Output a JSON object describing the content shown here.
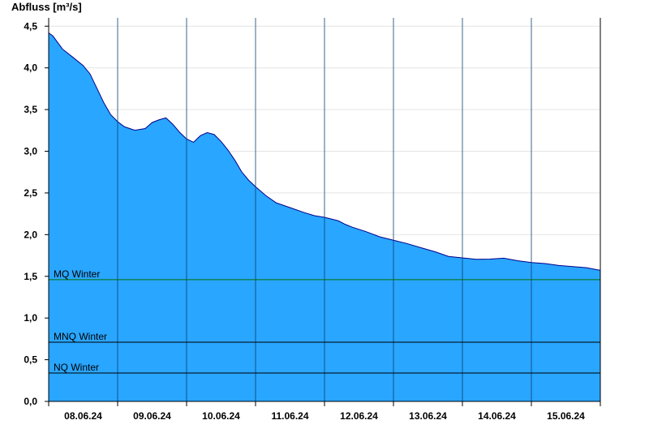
{
  "chart_data": {
    "type": "area",
    "ylabel": "Abfluss [m³/s]",
    "ylim": [
      0,
      4.6
    ],
    "yticks": [
      0,
      0.5,
      1.0,
      1.5,
      2.0,
      2.5,
      3.0,
      3.5,
      4.0,
      4.5
    ],
    "ytick_labels": [
      "0,0",
      "0,5",
      "1,0",
      "1,5",
      "2,0",
      "2,5",
      "3,0",
      "3,5",
      "4,0",
      "4,5"
    ],
    "xlim": [
      0,
      8
    ],
    "day_labels": [
      "08.06.24",
      "09.06.24",
      "10.06.24",
      "11.06.24",
      "12.06.24",
      "13.06.24",
      "14.06.24",
      "15.06.24"
    ],
    "grid": true,
    "series": [
      {
        "color": "#29a6ff",
        "line_color": "#00008b",
        "x": [
          0,
          0.06,
          0.2,
          0.35,
          0.5,
          0.6,
          0.7,
          0.8,
          0.9,
          1.0,
          1.1,
          1.25,
          1.4,
          1.5,
          1.6,
          1.7,
          1.8,
          1.9,
          2.0,
          2.1,
          2.2,
          2.3,
          2.4,
          2.5,
          2.6,
          2.7,
          2.8,
          2.9,
          3.0,
          3.15,
          3.3,
          3.5,
          3.7,
          3.85,
          4.0,
          4.2,
          4.3,
          4.4,
          4.6,
          4.8,
          5.0,
          5.2,
          5.4,
          5.6,
          5.8,
          6.0,
          6.2,
          6.4,
          6.6,
          6.8,
          7.0,
          7.2,
          7.4,
          7.6,
          7.8,
          8.0
        ],
        "y": [
          4.42,
          4.38,
          4.22,
          4.12,
          4.02,
          3.92,
          3.75,
          3.58,
          3.44,
          3.36,
          3.3,
          3.26,
          3.28,
          3.35,
          3.38,
          3.4,
          3.32,
          3.22,
          3.14,
          3.1,
          3.18,
          3.22,
          3.2,
          3.12,
          3.02,
          2.9,
          2.76,
          2.66,
          2.58,
          2.47,
          2.38,
          2.32,
          2.26,
          2.22,
          2.2,
          2.16,
          2.12,
          2.09,
          2.04,
          1.98,
          1.94,
          1.9,
          1.85,
          1.8,
          1.74,
          1.72,
          1.7,
          1.7,
          1.71,
          1.68,
          1.66,
          1.65,
          1.63,
          1.62,
          1.61,
          1.58
        ]
      }
    ],
    "reference_lines": [
      {
        "name": "MQ Winter",
        "value": 1.46,
        "color": "#007000"
      },
      {
        "name": "MNQ Winter",
        "value": 0.71,
        "color": "#000000"
      },
      {
        "name": "NQ Winter",
        "value": 0.34,
        "color": "#000000"
      }
    ]
  }
}
